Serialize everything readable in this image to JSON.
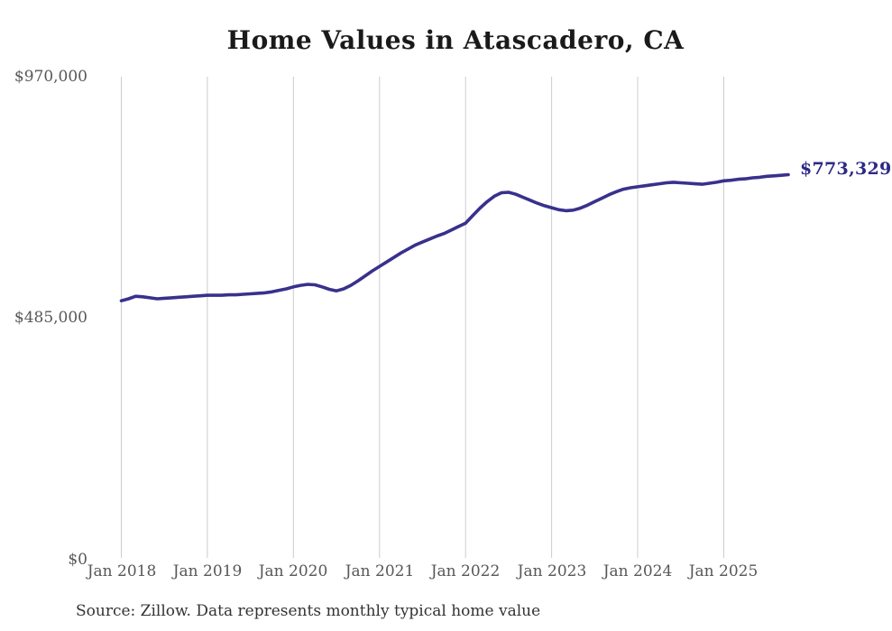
{
  "page": {
    "background": "#ffffff"
  },
  "chart_data": {
    "type": "line",
    "title": "Home Values in Atascadero, CA",
    "series_name": "Typical home value",
    "frequency": "monthly",
    "x_start": "Jan 2018",
    "x_end": "Oct 2025",
    "ylim": [
      0,
      970000
    ],
    "grid": "vertical-only",
    "legend": "none",
    "values": [
      520000,
      524000,
      529000,
      528000,
      526000,
      524000,
      525000,
      526000,
      527000,
      528000,
      529000,
      530000,
      531000,
      531000,
      531000,
      532000,
      532000,
      533000,
      534000,
      535000,
      536000,
      538000,
      541000,
      544000,
      548000,
      551000,
      553000,
      552000,
      548000,
      543000,
      540000,
      544000,
      551000,
      560000,
      570000,
      580000,
      589000,
      598000,
      607000,
      616000,
      624000,
      632000,
      638000,
      644000,
      650000,
      655000,
      662000,
      669000,
      676000,
      691000,
      706000,
      719000,
      730000,
      737000,
      738000,
      734000,
      728000,
      722000,
      716000,
      711000,
      707000,
      703000,
      701000,
      702000,
      706000,
      712000,
      719000,
      726000,
      733000,
      739000,
      744000,
      747000,
      749000,
      751000,
      753000,
      755000,
      757000,
      758000,
      757000,
      756000,
      755000,
      754000,
      756000,
      758000,
      761000,
      762000,
      764000,
      765000,
      767000,
      768000,
      770000,
      771000,
      772000,
      773329
    ],
    "x_ticks": [
      {
        "label": "Jan 2018",
        "month_index": 0
      },
      {
        "label": "Jan 2019",
        "month_index": 12
      },
      {
        "label": "Jan 2020",
        "month_index": 24
      },
      {
        "label": "Jan 2021",
        "month_index": 36
      },
      {
        "label": "Jan 2022",
        "month_index": 48
      },
      {
        "label": "Jan 2023",
        "month_index": 60
      },
      {
        "label": "Jan 2024",
        "month_index": 72
      },
      {
        "label": "Jan 2025",
        "month_index": 84
      }
    ],
    "y_ticks": [
      {
        "label": "$0",
        "value": 0
      },
      {
        "label": "$485,000",
        "value": 485000
      },
      {
        "label": "$970,000",
        "value": 970000
      }
    ],
    "end_label": "$773,329",
    "source_note": "Source: Zillow. Data represents monthly typical home value",
    "colors": {
      "line": "#38318c",
      "end_label": "#2d2a86",
      "title": "#1a1a1a",
      "tick": "#575757",
      "grid": "#cccccc",
      "source": "#333333"
    }
  }
}
